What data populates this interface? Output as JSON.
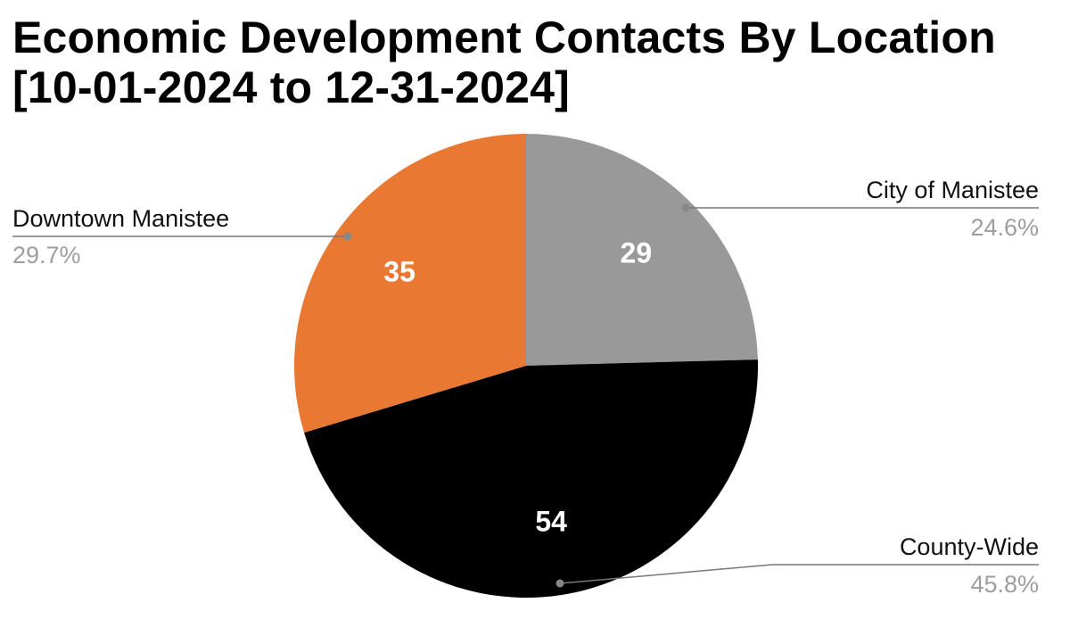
{
  "chart_data": {
    "type": "pie",
    "title": "Economic Development Contacts By Location [10-01-2024 to 12-31-2024]",
    "start_angle_deg": 0,
    "direction": "clockwise",
    "slices": [
      {
        "label": "City of Manistee",
        "value": 29,
        "value_label": "29",
        "percent_label": "24.6%",
        "color": "#999999"
      },
      {
        "label": "County-Wide",
        "value": 54,
        "value_label": "54",
        "percent_label": "45.8%",
        "color": "#000000"
      },
      {
        "label": "Downtown Manistee",
        "value": 35,
        "value_label": "35",
        "percent_label": "29.7%",
        "color": "#e97832"
      }
    ],
    "legend": "callout labels with leader lines"
  }
}
